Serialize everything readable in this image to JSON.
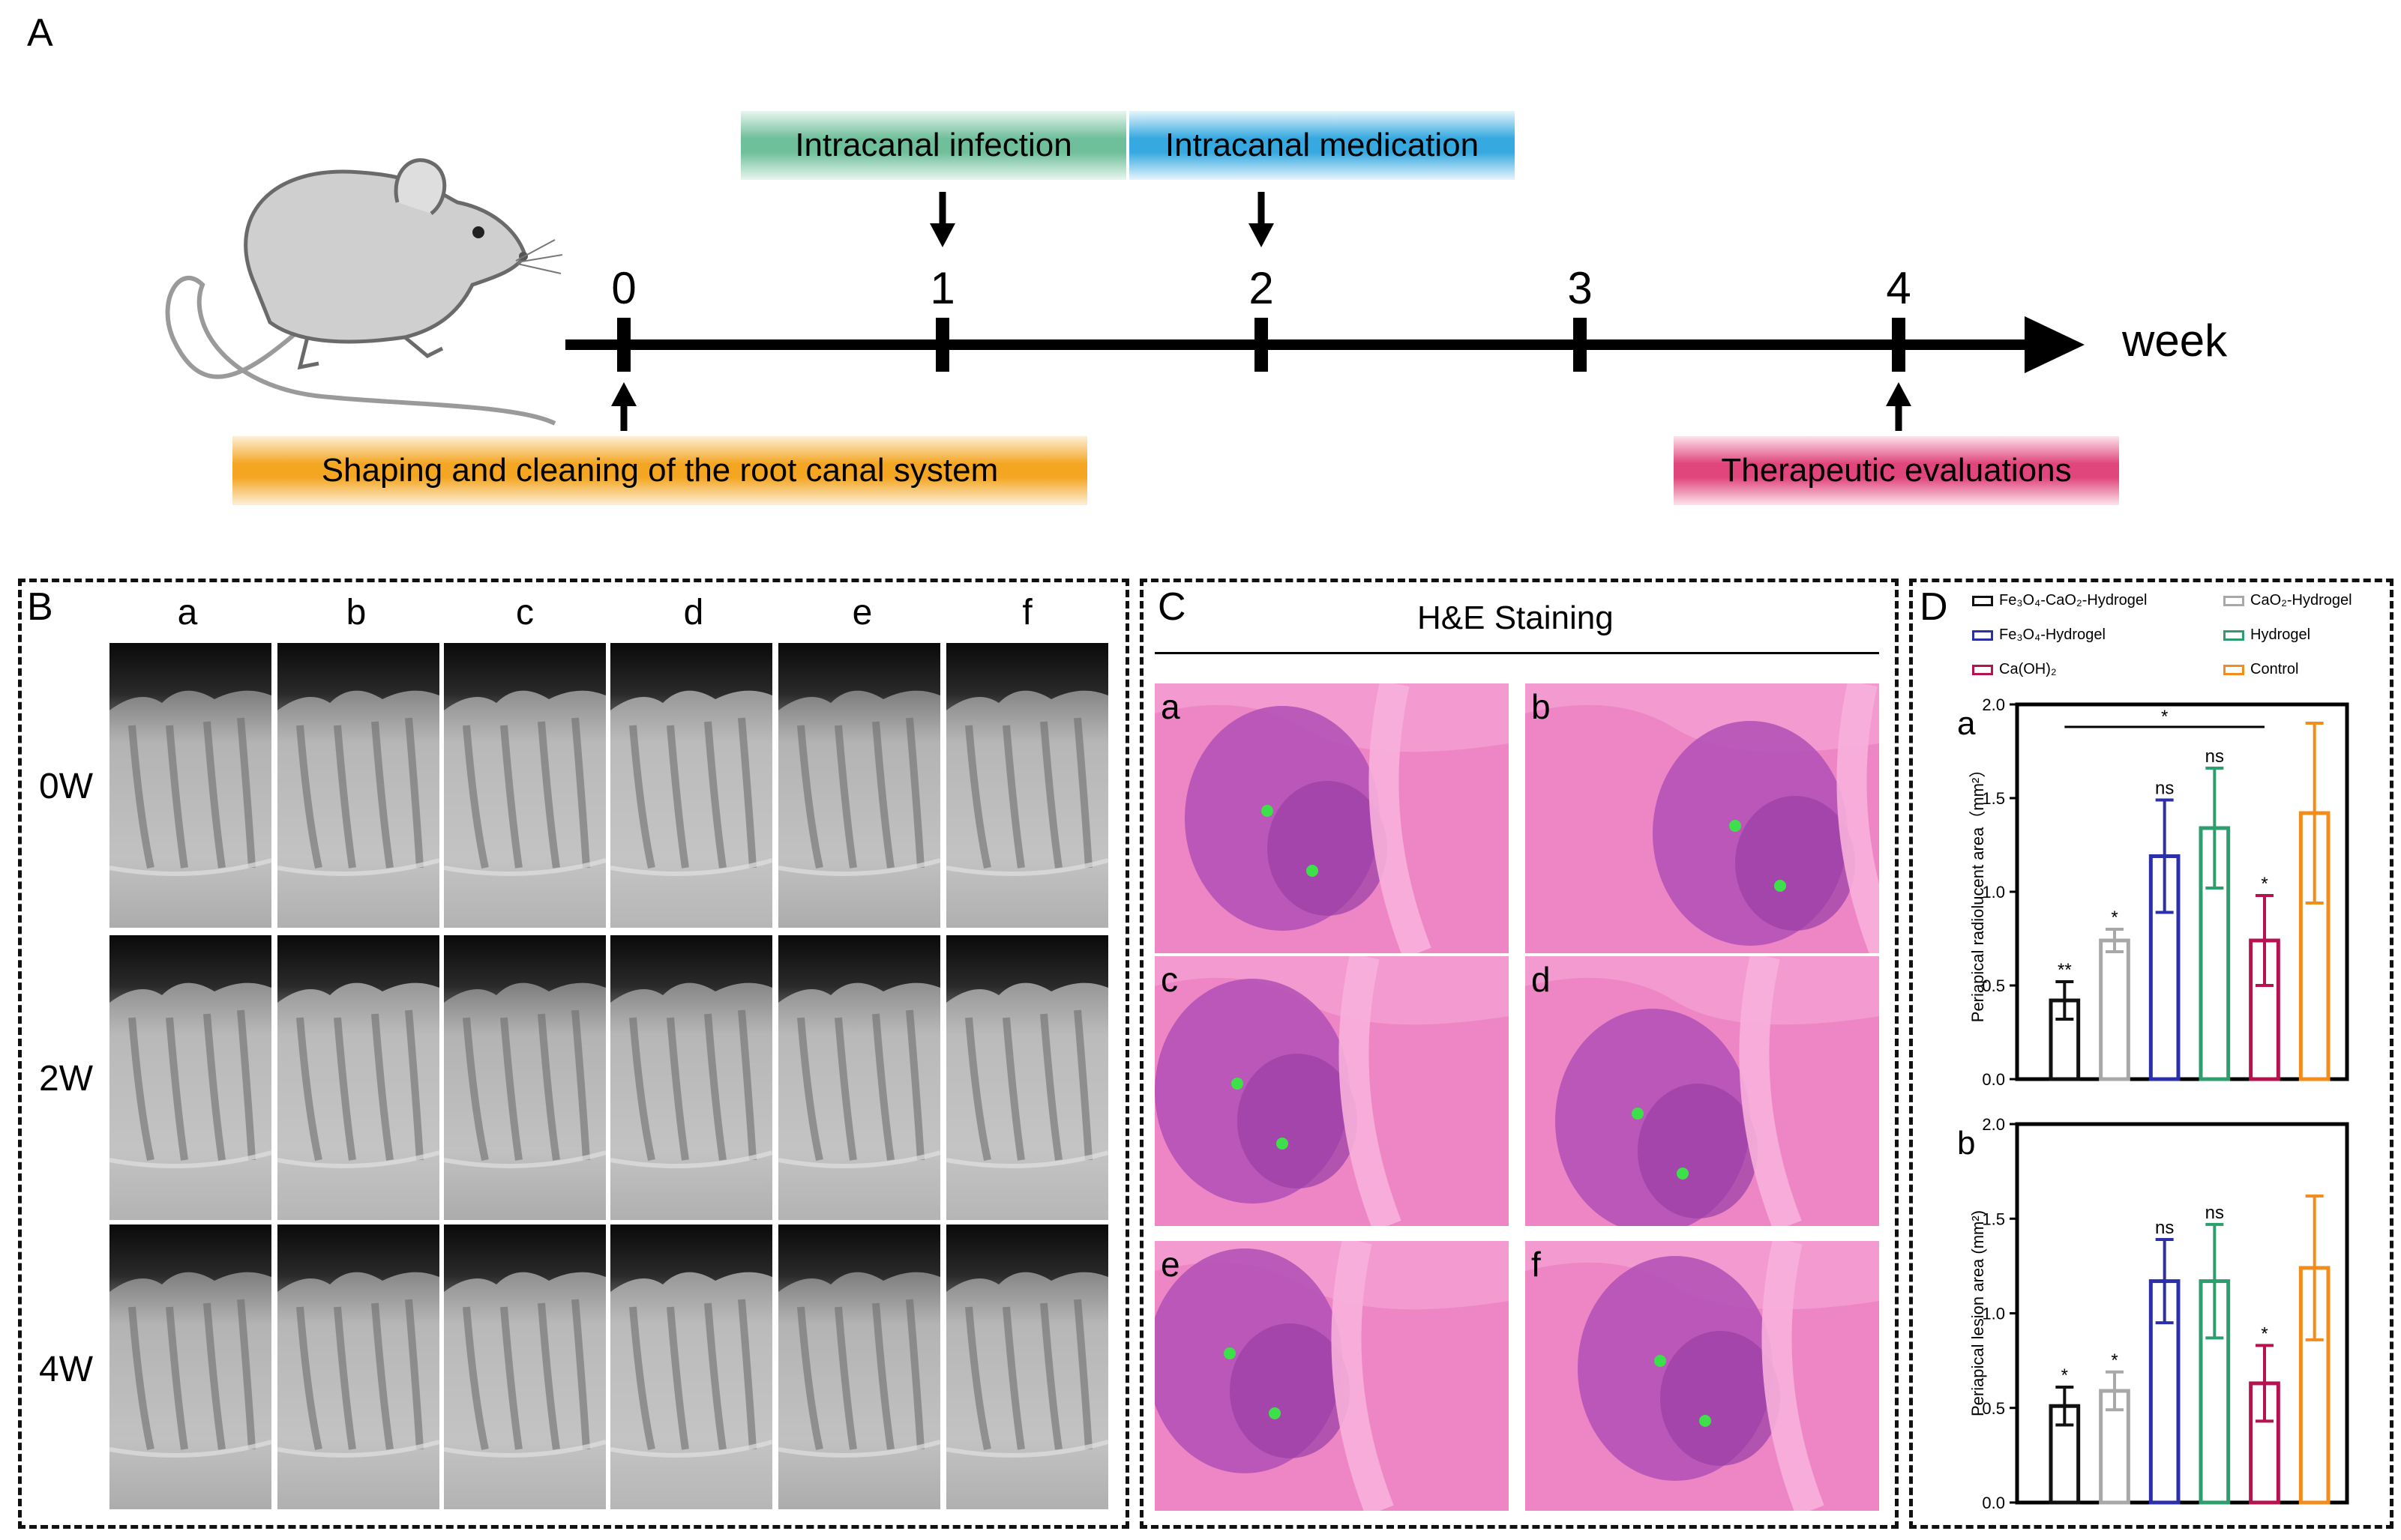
{
  "panel_a": {
    "letter": "A",
    "unit": "week",
    "ticks": [
      "0",
      "1",
      "2",
      "3",
      "4"
    ],
    "banners": {
      "infection": "Intracanal infection",
      "medication": "Intracanal medication",
      "shaping": "Shaping and cleaning of the root canal system",
      "evaluation": "Therapeutic evaluations"
    },
    "colors": {
      "infection": "#6fbf9a",
      "medication": "#35a9e0",
      "shaping": "#f4a623",
      "evaluation": "#e0457b"
    }
  },
  "panel_b": {
    "letter": "B",
    "columns": [
      "a",
      "b",
      "c",
      "d",
      "e",
      "f"
    ],
    "rows": [
      "0W",
      "2W",
      "4W"
    ]
  },
  "panel_c": {
    "letter": "C",
    "title": "H&E Staining",
    "cells": [
      "a",
      "b",
      "c",
      "d",
      "e",
      "f"
    ]
  },
  "panel_d": {
    "letter": "D",
    "legend": [
      {
        "name": "Fe₃O₄-CaO₂-Hydrogel",
        "color": "#111111"
      },
      {
        "name": "CaO₂-Hydrogel",
        "color": "#a8a8a8"
      },
      {
        "name": "Fe₃O₄-Hydrogel",
        "color": "#2b2fa8"
      },
      {
        "name": "Hydrogel",
        "color": "#2e9e6e"
      },
      {
        "name": "Ca(OH)₂",
        "color": "#b5124f"
      },
      {
        "name": "Control",
        "color": "#f28c1b"
      }
    ]
  },
  "chart_data": [
    {
      "type": "bar",
      "panel": "a",
      "ylabel": "Periapical radiolucent area（mm²）",
      "ylim": [
        0,
        2.0
      ],
      "yticks": [
        "0.0",
        "0.5",
        "1.0",
        "1.5",
        "2.0"
      ],
      "series": [
        {
          "name": "Fe₃O₄-CaO₂-Hydrogel",
          "values": [
            0.42
          ],
          "error": [
            0.1
          ],
          "annotation": "**"
        },
        {
          "name": "CaO₂-Hydrogel",
          "values": [
            0.74
          ],
          "error": [
            0.06
          ],
          "annotation": "*"
        },
        {
          "name": "Fe₃O₄-Hydrogel",
          "values": [
            1.19
          ],
          "error": [
            0.3
          ],
          "annotation": "ns"
        },
        {
          "name": "Hydrogel",
          "values": [
            1.34
          ],
          "error": [
            0.32
          ],
          "annotation": "ns"
        },
        {
          "name": "Ca(OH)₂",
          "values": [
            0.74
          ],
          "error": [
            0.24
          ],
          "annotation": "*"
        },
        {
          "name": "Control",
          "values": [
            1.42
          ],
          "error": [
            0.48
          ],
          "annotation": ""
        }
      ],
      "bracket_annotation": "*"
    },
    {
      "type": "bar",
      "panel": "b",
      "ylabel": "Periapical lesion area (mm²)",
      "ylim": [
        0,
        2.0
      ],
      "yticks": [
        "0.0",
        "0.5",
        "1.0",
        "1.5",
        "2.0"
      ],
      "series": [
        {
          "name": "Fe₃O₄-CaO₂-Hydrogel",
          "values": [
            0.51
          ],
          "error": [
            0.1
          ],
          "annotation": "*"
        },
        {
          "name": "CaO₂-Hydrogel",
          "values": [
            0.59
          ],
          "error": [
            0.1
          ],
          "annotation": "*"
        },
        {
          "name": "Fe₃O₄-Hydrogel",
          "values": [
            1.17
          ],
          "error": [
            0.22
          ],
          "annotation": "ns"
        },
        {
          "name": "Hydrogel",
          "values": [
            1.17
          ],
          "error": [
            0.3
          ],
          "annotation": "ns"
        },
        {
          "name": "Ca(OH)₂",
          "values": [
            0.63
          ],
          "error": [
            0.2
          ],
          "annotation": "*"
        },
        {
          "name": "Control",
          "values": [
            1.24
          ],
          "error": [
            0.38
          ],
          "annotation": ""
        }
      ]
    }
  ]
}
